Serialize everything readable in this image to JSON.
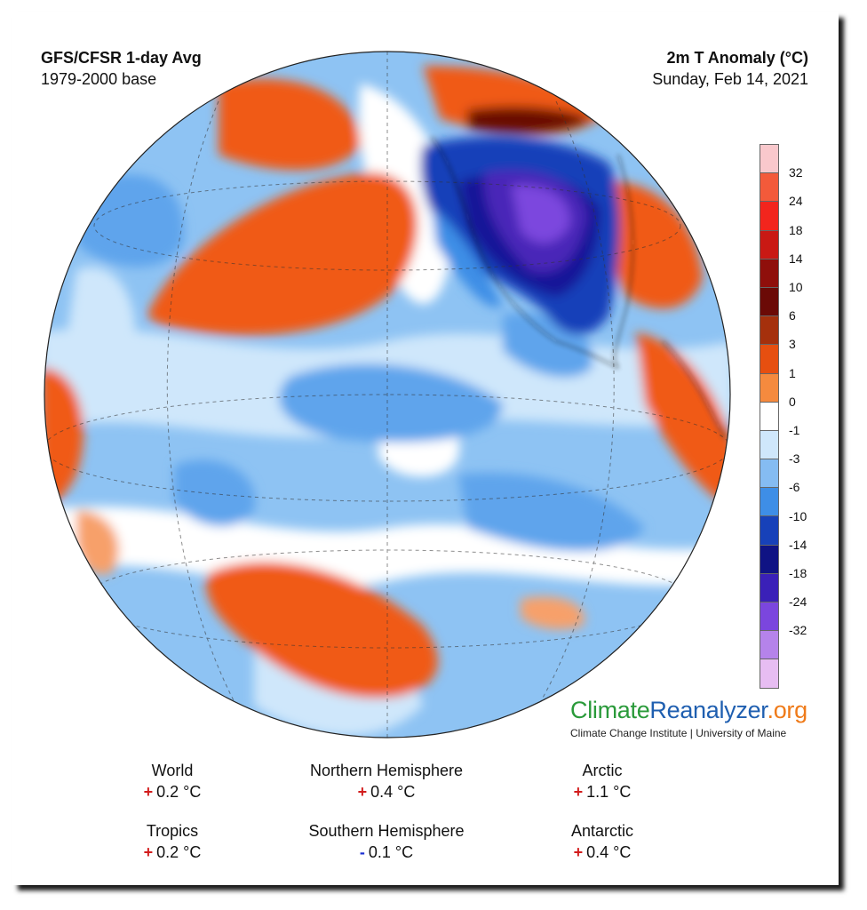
{
  "header": {
    "title_left": "GFS/CFSR 1-day Avg",
    "subtitle_left": "1979-2000 base",
    "title_right": "2m T Anomaly (°C)",
    "date_right": "Sunday, Feb 14, 2021"
  },
  "colorbar": {
    "labels": [
      "32",
      "24",
      "18",
      "14",
      "10",
      "6",
      "3",
      "1",
      "0",
      "-1",
      "-3",
      "-6",
      "-10",
      "-14",
      "-18",
      "-24",
      "-32"
    ],
    "colors": [
      "#f9c8cc",
      "#f35a3a",
      "#f2251d",
      "#c91914",
      "#8f0f0b",
      "#6b0a06",
      "#a5300c",
      "#e64f10",
      "#f58a3e",
      "#ffffff",
      "#cfe7fb",
      "#85bcf2",
      "#3e8ee6",
      "#1741b9",
      "#0f1384",
      "#3a20b8",
      "#7b46de",
      "#b583ea",
      "#e7bdf2"
    ],
    "unit": "°C"
  },
  "brand": {
    "part1": "Climate",
    "part2": "Reanalyzer",
    "part3": ".org",
    "color1": "#2a9a3a",
    "color2": "#1f5fb0",
    "color3": "#ef7b1a",
    "subtitle": "Climate Change Institute | University of Maine"
  },
  "stats": [
    {
      "label": "World",
      "sign": "+",
      "value": "0.2 °C"
    },
    {
      "label": "Northern Hemisphere",
      "sign": "+",
      "value": "0.4 °C"
    },
    {
      "label": "Arctic",
      "sign": "+",
      "value": "1.1 °C"
    },
    {
      "label": "Tropics",
      "sign": "+",
      "value": "0.2 °C"
    },
    {
      "label": "Southern Hemisphere",
      "sign": "-",
      "value": "0.1 °C"
    },
    {
      "label": "Antarctic",
      "sign": "+",
      "value": "0.4 °C"
    }
  ],
  "colors": {
    "ocean_base": "#8ec3f3",
    "pale_blue": "#cfe7fb",
    "warm": "#f05a12",
    "cold_core": "#4a28b8",
    "cold_deep": "#121898"
  }
}
